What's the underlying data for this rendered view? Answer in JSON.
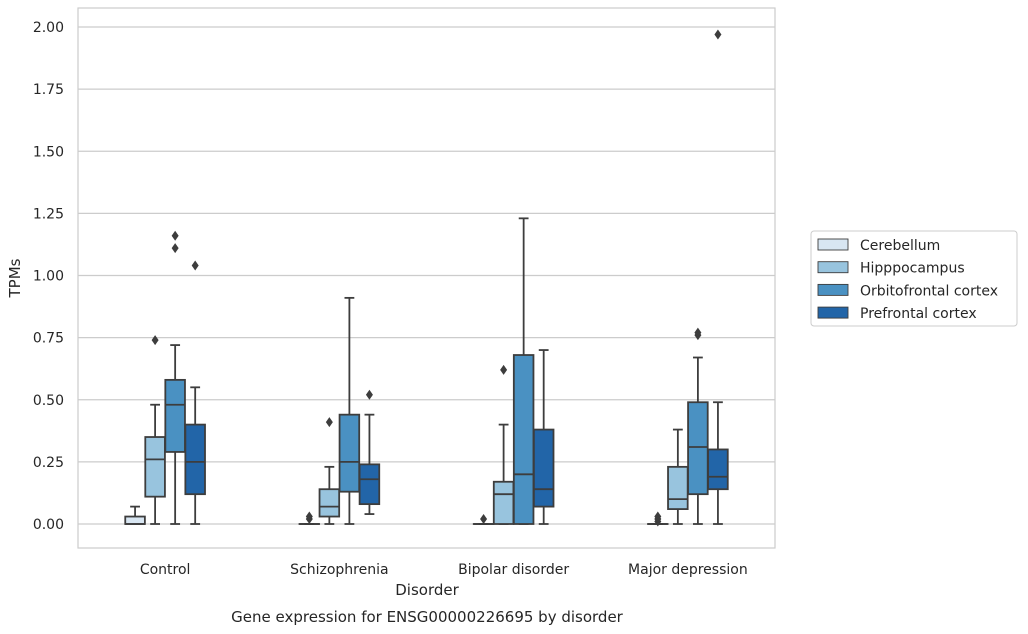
{
  "chart_data": {
    "type": "box",
    "xlabel": "Disorder",
    "ylabel": "TPMs",
    "caption": "Gene expression for ENSG00000226695 by disorder",
    "ylim": [
      -0.1,
      2.08
    ],
    "yticks": [
      "0.00",
      "0.25",
      "0.50",
      "0.75",
      "1.00",
      "1.25",
      "1.50",
      "1.75",
      "2.00"
    ],
    "grid": "horizontal",
    "legend_position": "right",
    "categories": [
      "Control",
      "Schizophrenia",
      "Bipolar disorder",
      "Major depression"
    ],
    "series": [
      {
        "name": "Cerebellum",
        "color": "#d8e6f2",
        "boxes": [
          {
            "whislo": 0.0,
            "q1": 0.0,
            "med": 0.0,
            "q3": 0.03,
            "whishi": 0.07,
            "fliers": []
          },
          {
            "whislo": 0.0,
            "q1": 0.0,
            "med": 0.0,
            "q3": 0.0,
            "whishi": 0.0,
            "fliers": [
              0.02,
              0.03
            ]
          },
          {
            "whislo": 0.0,
            "q1": 0.0,
            "med": 0.0,
            "q3": 0.0,
            "whishi": 0.0,
            "fliers": [
              0.02
            ]
          },
          {
            "whislo": 0.0,
            "q1": 0.0,
            "med": 0.0,
            "q3": 0.0,
            "whishi": 0.0,
            "fliers": [
              0.01,
              0.02,
              0.03
            ]
          }
        ]
      },
      {
        "name": "Hipppocampus",
        "color": "#98c4de",
        "boxes": [
          {
            "whislo": 0.0,
            "q1": 0.11,
            "med": 0.26,
            "q3": 0.35,
            "whishi": 0.48,
            "fliers": [
              0.74
            ]
          },
          {
            "whislo": 0.0,
            "q1": 0.03,
            "med": 0.07,
            "q3": 0.14,
            "whishi": 0.23,
            "fliers": [
              0.41
            ]
          },
          {
            "whislo": 0.0,
            "q1": 0.0,
            "med": 0.12,
            "q3": 0.17,
            "whishi": 0.4,
            "fliers": [
              0.62
            ]
          },
          {
            "whislo": 0.0,
            "q1": 0.06,
            "med": 0.1,
            "q3": 0.23,
            "whishi": 0.38,
            "fliers": []
          }
        ]
      },
      {
        "name": "Orbitofrontal cortex",
        "color": "#4a91c2",
        "boxes": [
          {
            "whislo": 0.0,
            "q1": 0.29,
            "med": 0.48,
            "q3": 0.58,
            "whishi": 0.72,
            "fliers": [
              1.11,
              1.16
            ]
          },
          {
            "whislo": 0.0,
            "q1": 0.13,
            "med": 0.25,
            "q3": 0.44,
            "whishi": 0.91,
            "fliers": []
          },
          {
            "whislo": 0.0,
            "q1": 0.0,
            "med": 0.2,
            "q3": 0.68,
            "whishi": 1.23,
            "fliers": []
          },
          {
            "whislo": 0.0,
            "q1": 0.12,
            "med": 0.31,
            "q3": 0.49,
            "whishi": 0.67,
            "fliers": [
              0.76,
              0.77
            ]
          }
        ]
      },
      {
        "name": "Prefrontal cortex",
        "color": "#2265a8",
        "boxes": [
          {
            "whislo": 0.0,
            "q1": 0.12,
            "med": 0.25,
            "q3": 0.4,
            "whishi": 0.55,
            "fliers": [
              1.04
            ]
          },
          {
            "whislo": 0.04,
            "q1": 0.08,
            "med": 0.18,
            "q3": 0.24,
            "whishi": 0.44,
            "fliers": [
              0.52
            ]
          },
          {
            "whislo": 0.0,
            "q1": 0.07,
            "med": 0.14,
            "q3": 0.38,
            "whishi": 0.7,
            "fliers": []
          },
          {
            "whislo": 0.0,
            "q1": 0.14,
            "med": 0.19,
            "q3": 0.3,
            "whishi": 0.49,
            "fliers": [
              1.97
            ]
          }
        ]
      }
    ]
  }
}
